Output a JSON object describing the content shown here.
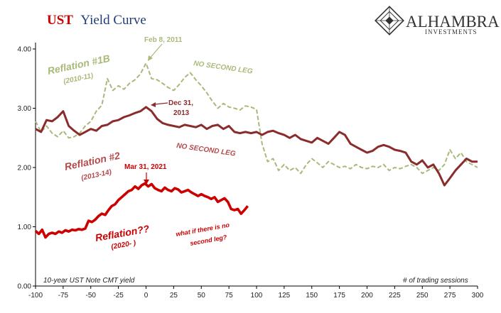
{
  "header": {
    "title_accent": "UST",
    "title_rest": "Yield Curve",
    "logo_name": "ALHAMBRA",
    "logo_sub": "INVESTMENTS"
  },
  "chart_data": {
    "type": "line",
    "ylabel_note": "10-year UST Note CMT yield",
    "xlabel_note": "# of trading sessions",
    "xlim": [
      -100,
      300
    ],
    "ylim": [
      0,
      4
    ],
    "x_ticks": [
      "-100",
      "-75",
      "-50",
      "-25",
      "0",
      "25",
      "50",
      "75",
      "100",
      "125",
      "150",
      "175",
      "200",
      "225",
      "250",
      "275",
      "300"
    ],
    "y_ticks": [
      "0.00",
      "1.00",
      "2.00",
      "3.00",
      "4.00"
    ],
    "grid": false,
    "colors": {
      "reflation1": "#a9b97a",
      "reflation2": "#8b2c2c",
      "reflation3": "#cc0000",
      "green_text": "#9aab6b",
      "red2_text": "#b34a4a",
      "red3_text": "#cc0000"
    },
    "series": [
      {
        "key": "reflation1",
        "style": "dashed",
        "x": [
          -100,
          -95,
          -90,
          -85,
          -80,
          -75,
          -70,
          -65,
          -60,
          -55,
          -50,
          -45,
          -40,
          -35,
          -30,
          -25,
          -20,
          -15,
          -10,
          -5,
          0,
          5,
          10,
          15,
          20,
          25,
          30,
          35,
          40,
          45,
          50,
          55,
          60,
          65,
          70,
          75,
          80,
          85,
          90,
          95,
          100,
          105,
          110,
          115,
          120,
          125,
          130,
          135,
          140,
          145,
          150,
          155,
          160,
          165,
          170,
          175,
          180,
          185,
          190,
          195,
          200,
          205,
          210,
          215,
          220,
          225,
          230,
          235,
          240,
          245,
          250,
          255,
          260,
          265,
          270,
          275,
          280,
          285,
          290,
          295,
          300
        ],
        "y": [
          2.78,
          2.6,
          2.7,
          2.58,
          2.52,
          2.62,
          2.5,
          2.52,
          2.58,
          2.7,
          2.78,
          2.95,
          3.05,
          3.5,
          3.3,
          3.38,
          3.32,
          3.42,
          3.48,
          3.58,
          3.76,
          3.5,
          3.48,
          3.42,
          3.35,
          3.3,
          3.4,
          3.52,
          3.6,
          3.48,
          3.38,
          3.26,
          3.12,
          3.0,
          3.08,
          3.02,
          3.0,
          2.97,
          3.04,
          3.02,
          2.98,
          2.4,
          2.1,
          2.15,
          1.95,
          2.05,
          1.95,
          2.0,
          1.9,
          2.05,
          2.15,
          2.08,
          2.0,
          2.1,
          2.05,
          2.0,
          2.02,
          1.98,
          2.05,
          2.0,
          1.98,
          2.02,
          2.0,
          2.05,
          1.95,
          2.0,
          1.98,
          2.02,
          2.05,
          2.0,
          1.9,
          1.95,
          2.0,
          1.95,
          2.05,
          2.3,
          2.15,
          2.25,
          2.1,
          2.05,
          2.0
        ]
      },
      {
        "key": "reflation2",
        "style": "solid",
        "x": [
          -100,
          -95,
          -90,
          -85,
          -80,
          -75,
          -70,
          -65,
          -60,
          -55,
          -50,
          -45,
          -40,
          -35,
          -30,
          -25,
          -20,
          -15,
          -10,
          -5,
          0,
          5,
          10,
          15,
          20,
          25,
          30,
          35,
          40,
          45,
          50,
          55,
          60,
          65,
          70,
          75,
          80,
          85,
          90,
          95,
          100,
          105,
          110,
          115,
          120,
          125,
          130,
          135,
          140,
          145,
          150,
          155,
          160,
          165,
          170,
          175,
          180,
          185,
          190,
          195,
          200,
          205,
          210,
          215,
          220,
          225,
          230,
          235,
          240,
          245,
          250,
          255,
          260,
          265,
          270,
          275,
          280,
          285,
          290,
          295,
          300
        ],
        "y": [
          2.65,
          2.6,
          2.8,
          2.78,
          2.85,
          2.95,
          2.7,
          2.62,
          2.55,
          2.6,
          2.65,
          2.62,
          2.7,
          2.72,
          2.78,
          2.8,
          2.85,
          2.88,
          2.92,
          2.95,
          3.02,
          2.95,
          2.82,
          2.75,
          2.72,
          2.7,
          2.68,
          2.72,
          2.7,
          2.68,
          2.72,
          2.65,
          2.7,
          2.72,
          2.65,
          2.7,
          2.6,
          2.58,
          2.6,
          2.58,
          2.6,
          2.55,
          2.6,
          2.62,
          2.58,
          2.55,
          2.5,
          2.55,
          2.48,
          2.45,
          2.42,
          2.5,
          2.45,
          2.4,
          2.5,
          2.6,
          2.55,
          2.4,
          2.35,
          2.3,
          2.25,
          2.28,
          2.35,
          2.38,
          2.35,
          2.3,
          2.28,
          2.25,
          2.1,
          2.05,
          2.12,
          2.0,
          2.05,
          1.9,
          1.7,
          1.82,
          1.95,
          2.05,
          2.15,
          2.1,
          2.1
        ]
      },
      {
        "key": "reflation3",
        "style": "solid",
        "x": [
          -100,
          -97,
          -94,
          -91,
          -88,
          -85,
          -82,
          -79,
          -76,
          -73,
          -70,
          -67,
          -64,
          -61,
          -58,
          -55,
          -52,
          -49,
          -46,
          -43,
          -40,
          -37,
          -34,
          -31,
          -28,
          -25,
          -22,
          -19,
          -16,
          -13,
          -10,
          -7,
          -4,
          -1,
          2,
          5,
          8,
          11,
          14,
          17,
          20,
          23,
          26,
          29,
          32,
          35,
          38,
          41,
          44,
          47,
          50,
          53,
          56,
          59,
          62,
          65,
          68,
          71,
          74,
          77,
          80,
          83,
          86,
          89,
          92
        ],
        "y": [
          0.93,
          0.88,
          0.95,
          0.82,
          0.88,
          0.9,
          0.88,
          0.92,
          0.9,
          0.94,
          0.92,
          0.95,
          0.94,
          0.96,
          0.95,
          0.97,
          1.1,
          1.08,
          1.12,
          1.18,
          1.22,
          1.2,
          1.28,
          1.35,
          1.38,
          1.45,
          1.5,
          1.55,
          1.6,
          1.62,
          1.68,
          1.64,
          1.7,
          1.73,
          1.68,
          1.72,
          1.65,
          1.62,
          1.6,
          1.66,
          1.62,
          1.6,
          1.65,
          1.63,
          1.58,
          1.6,
          1.62,
          1.58,
          1.55,
          1.52,
          1.55,
          1.52,
          1.5,
          1.47,
          1.5,
          1.42,
          1.45,
          1.48,
          1.42,
          1.3,
          1.28,
          1.3,
          1.22,
          1.28,
          1.35
        ]
      }
    ],
    "annotations": {
      "r1_title": "Reflation #1B",
      "r1_years": "(2010-11)",
      "r1_peak": "Feb 8, 2011",
      "r1_nsl": "NO SECOND LEG",
      "r2_title": "Reflation #2",
      "r2_years": "(2013-14)",
      "r2_peak_1": "Dec 31,",
      "r2_peak_2": "2013",
      "r2_nsl": "NO SECOND LEG",
      "r3_peak": "Mar 31, 2021",
      "r3_title": "Reflation??",
      "r3_years": "(2020- )",
      "r3_q1": "what if there is no",
      "r3_q2": "second leg?"
    }
  }
}
